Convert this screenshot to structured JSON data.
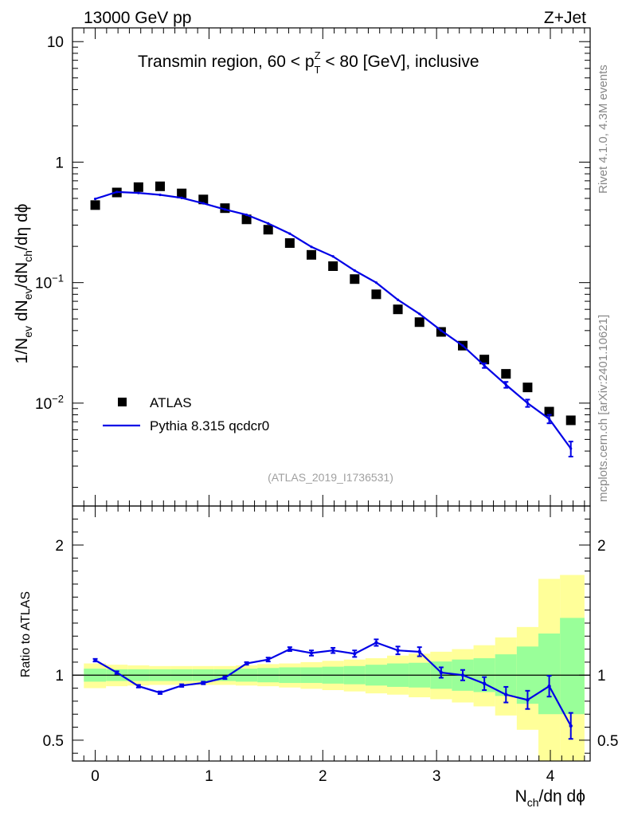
{
  "header": {
    "left": "13000 GeV pp",
    "right": "Z+Jet"
  },
  "side_labels": {
    "rivet": "Rivet 4.1.0,  4.3M events",
    "mcplots": "mcplots.cern.ch [arXiv:2401.10621]"
  },
  "colors": {
    "mc": "#0000e6",
    "band_inner": "#99ff99",
    "band_outer": "#ffff99",
    "data": "#000000"
  },
  "chart_data": [
    {
      "type": "scatter",
      "panel": "main",
      "title": "Transmin region, 60 < p_T^Z < 80 [GeV], inclusive",
      "title_parts": {
        "pre": "Transmin region, 60 < p",
        "sup": "Z",
        "sub": "T",
        "post": " < 80 [GeV], inclusive"
      },
      "ylabel": "1/N_ev dN_ev/dN_ch/dη dϕ",
      "yscale": "log",
      "ylim": [
        0.0014,
        13
      ],
      "xlim": [
        -0.2,
        4.35
      ],
      "y_ticks": [
        {
          "value": 10,
          "label": "10"
        },
        {
          "value": 1,
          "label": "1"
        },
        {
          "value": 0.1,
          "label": "10",
          "exp": "−1"
        },
        {
          "value": 0.01,
          "label": "10",
          "exp": "−2"
        }
      ],
      "watermark": "(ATLAS_2019_I1736531)",
      "legend_position": "lower-left",
      "series": [
        {
          "name": "ATLAS",
          "style": "markers",
          "x": [
            0.0,
            0.19,
            0.38,
            0.57,
            0.76,
            0.95,
            1.14,
            1.33,
            1.52,
            1.71,
            1.9,
            2.09,
            2.28,
            2.47,
            2.66,
            2.85,
            3.04,
            3.23,
            3.42,
            3.61,
            3.8,
            3.99,
            4.18
          ],
          "values": [
            0.44,
            0.56,
            0.62,
            0.63,
            0.55,
            0.49,
            0.415,
            0.335,
            0.275,
            0.213,
            0.17,
            0.137,
            0.107,
            0.08,
            0.06,
            0.047,
            0.039,
            0.03,
            0.023,
            0.0175,
            0.0135,
            0.0085,
            0.0072
          ]
        },
        {
          "name": "Pythia 8.315 qcdcr0",
          "style": "line",
          "x": [
            0.0,
            0.19,
            0.38,
            0.57,
            0.76,
            0.95,
            1.14,
            1.33,
            1.52,
            1.71,
            1.9,
            2.09,
            2.28,
            2.47,
            2.66,
            2.85,
            3.04,
            3.23,
            3.42,
            3.61,
            3.8,
            3.99,
            4.18
          ],
          "values": [
            0.495,
            0.565,
            0.555,
            0.535,
            0.505,
            0.455,
            0.405,
            0.365,
            0.31,
            0.255,
            0.198,
            0.165,
            0.126,
            0.1,
            0.072,
            0.055,
            0.04,
            0.03,
            0.0205,
            0.0142,
            0.01,
            0.0074,
            0.0042
          ],
          "err": [
            0,
            0,
            0,
            0,
            0,
            0,
            0,
            0,
            0,
            0,
            0,
            0,
            0,
            0,
            0,
            0,
            0,
            0,
            0.0009,
            0.0008,
            0.0007,
            0.0006,
            0.0006
          ]
        }
      ]
    },
    {
      "type": "line",
      "panel": "ratio",
      "ylabel": "Ratio to ATLAS",
      "xlabel": "N_ch/dη dϕ",
      "ylim": [
        0.34,
        2.3
      ],
      "xlim": [
        -0.2,
        4.35
      ],
      "y_ticks": [
        {
          "value": 2,
          "label": "2"
        },
        {
          "value": 1,
          "label": "1"
        },
        {
          "value": 0.5,
          "label": "0.5"
        }
      ],
      "x_ticks": [
        {
          "value": 0,
          "label": "0"
        },
        {
          "value": 1,
          "label": "1"
        },
        {
          "value": 2,
          "label": "2"
        },
        {
          "value": 3,
          "label": "3"
        },
        {
          "value": 4,
          "label": "4"
        }
      ],
      "bands": {
        "edges": [
          -0.1,
          0.095,
          0.285,
          0.475,
          0.665,
          0.855,
          1.045,
          1.235,
          1.425,
          1.615,
          1.805,
          1.995,
          2.185,
          2.375,
          2.565,
          2.755,
          2.945,
          3.135,
          3.325,
          3.515,
          3.705,
          3.895,
          4.085,
          4.3
        ],
        "inner_lo": [
          0.95,
          0.955,
          0.955,
          0.955,
          0.955,
          0.955,
          0.955,
          0.95,
          0.945,
          0.94,
          0.94,
          0.935,
          0.93,
          0.92,
          0.91,
          0.905,
          0.895,
          0.88,
          0.87,
          0.84,
          0.78,
          0.7,
          0.7
        ],
        "inner_hi": [
          1.05,
          1.045,
          1.045,
          1.045,
          1.045,
          1.045,
          1.045,
          1.05,
          1.055,
          1.06,
          1.06,
          1.065,
          1.07,
          1.08,
          1.09,
          1.095,
          1.105,
          1.12,
          1.13,
          1.16,
          1.22,
          1.32,
          1.44
        ],
        "outer_lo": [
          0.9,
          0.915,
          0.92,
          0.925,
          0.925,
          0.925,
          0.925,
          0.92,
          0.915,
          0.905,
          0.895,
          0.885,
          0.875,
          0.86,
          0.85,
          0.83,
          0.815,
          0.79,
          0.76,
          0.69,
          0.58,
          0.34,
          0.34
        ],
        "outer_hi": [
          1.09,
          1.08,
          1.075,
          1.07,
          1.07,
          1.07,
          1.07,
          1.075,
          1.085,
          1.09,
          1.1,
          1.11,
          1.12,
          1.13,
          1.15,
          1.165,
          1.18,
          1.2,
          1.23,
          1.29,
          1.37,
          1.74,
          1.77
        ]
      },
      "series": [
        {
          "name": "Pythia 8.315 qcdcr0 / ATLAS",
          "x": [
            0.0,
            0.19,
            0.38,
            0.57,
            0.76,
            0.95,
            1.14,
            1.33,
            1.52,
            1.71,
            1.9,
            2.09,
            2.28,
            2.47,
            2.66,
            2.85,
            3.04,
            3.23,
            3.42,
            3.61,
            3.8,
            3.99,
            4.18
          ],
          "values": [
            1.115,
            1.02,
            0.915,
            0.865,
            0.92,
            0.94,
            0.98,
            1.09,
            1.12,
            1.2,
            1.17,
            1.19,
            1.165,
            1.25,
            1.19,
            1.18,
            1.02,
            1.0,
            0.935,
            0.85,
            0.81,
            0.915,
            0.61
          ],
          "err": [
            0.01,
            0.01,
            0.01,
            0.01,
            0.01,
            0.01,
            0.01,
            0.01,
            0.015,
            0.015,
            0.02,
            0.02,
            0.025,
            0.025,
            0.03,
            0.035,
            0.04,
            0.04,
            0.05,
            0.06,
            0.07,
            0.08,
            0.1
          ]
        }
      ],
      "reference_line": 1
    }
  ]
}
